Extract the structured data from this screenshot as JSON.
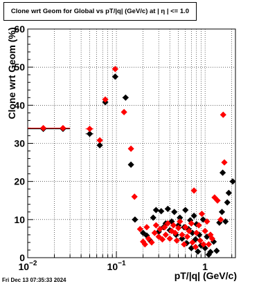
{
  "chart_data": {
    "type": "scatter",
    "title": "Clone wrt Geom for Global vs pT/|q| (GeV/c) at |  η  | <= 1.0",
    "xlabel": "pT/|q| (GeV/c)",
    "ylabel": "Clone wrt Geom (%)",
    "x_scale": "log",
    "xlim": [
      0.01,
      2.2
    ],
    "ylim": [
      0,
      60
    ],
    "grid": true,
    "y_ticks": [
      "0",
      "10",
      "20",
      "30",
      "40",
      "50",
      "60"
    ],
    "x_ticks": [
      {
        "value": 0.01,
        "base": "10",
        "exp": "−2"
      },
      {
        "value": 0.1,
        "base": "10",
        "exp": "−1"
      },
      {
        "value": 1,
        "base": "1",
        "exp": ""
      }
    ],
    "series": [
      {
        "color": "#000000",
        "marker": "diamond",
        "points": [
          {
            "x": 0.015,
            "y": 33.8,
            "x_lo": 0.01,
            "x_hi": 0.02
          },
          {
            "x": 0.025,
            "y": 33.8,
            "x_lo": 0.02,
            "x_hi": 0.03
          },
          {
            "x": 0.05,
            "y": 32.5,
            "x_lo": 0.045,
            "x_hi": 0.055
          },
          {
            "x": 0.065,
            "y": 29.5
          },
          {
            "x": 0.075,
            "y": 40.8
          },
          {
            "x": 0.097,
            "y": 47.5,
            "x_lo": 0.09,
            "x_hi": 0.105
          },
          {
            "x": 0.127,
            "y": 42.0,
            "x_lo": 0.117,
            "x_hi": 0.137
          },
          {
            "x": 0.146,
            "y": 24.4
          },
          {
            "x": 0.162,
            "y": 10.0
          },
          {
            "x": 0.2,
            "y": 6.5
          },
          {
            "x": 0.22,
            "y": 5.8
          },
          {
            "x": 0.24,
            "y": 4.5
          },
          {
            "x": 0.26,
            "y": 10.5
          },
          {
            "x": 0.28,
            "y": 12.5
          },
          {
            "x": 0.3,
            "y": 6.8
          },
          {
            "x": 0.32,
            "y": 12.2
          },
          {
            "x": 0.34,
            "y": 8.0
          },
          {
            "x": 0.36,
            "y": 9.0
          },
          {
            "x": 0.38,
            "y": 12.8
          },
          {
            "x": 0.4,
            "y": 7.2
          },
          {
            "x": 0.42,
            "y": 9.5
          },
          {
            "x": 0.45,
            "y": 12.0
          },
          {
            "x": 0.47,
            "y": 6.0
          },
          {
            "x": 0.5,
            "y": 8.5
          },
          {
            "x": 0.52,
            "y": 10.5
          },
          {
            "x": 0.55,
            "y": 5.0
          },
          {
            "x": 0.58,
            "y": 8.0
          },
          {
            "x": 0.6,
            "y": 12.5
          },
          {
            "x": 0.62,
            "y": 3.8
          },
          {
            "x": 0.65,
            "y": 7.5
          },
          {
            "x": 0.68,
            "y": 9.8
          },
          {
            "x": 0.7,
            "y": 2.5
          },
          {
            "x": 0.72,
            "y": 6.5
          },
          {
            "x": 0.75,
            "y": 11.0
          },
          {
            "x": 0.78,
            "y": 4.8
          },
          {
            "x": 0.8,
            "y": 8.8
          },
          {
            "x": 0.83,
            "y": 1.6
          },
          {
            "x": 0.86,
            "y": 6.0
          },
          {
            "x": 0.9,
            "y": 3.2
          },
          {
            "x": 0.95,
            "y": 10.0
          },
          {
            "x": 1.0,
            "y": 2.5
          },
          {
            "x": 1.05,
            "y": 5.5
          },
          {
            "x": 1.1,
            "y": 0.8
          },
          {
            "x": 1.15,
            "y": 1.5
          },
          {
            "x": 1.25,
            "y": 4.2
          },
          {
            "x": 1.35,
            "y": 1.8
          },
          {
            "x": 1.45,
            "y": 9.2
          },
          {
            "x": 1.55,
            "y": 12.0
          },
          {
            "x": 1.58,
            "y": 22.3
          },
          {
            "x": 1.7,
            "y": 9.5
          },
          {
            "x": 1.78,
            "y": 14.5
          },
          {
            "x": 1.85,
            "y": 17.0
          },
          {
            "x": 2.05,
            "y": 20.0
          }
        ]
      },
      {
        "color": "#ff0000",
        "marker": "diamond",
        "points": [
          {
            "x": 0.015,
            "y": 34.0,
            "x_lo": 0.01,
            "x_hi": 0.02
          },
          {
            "x": 0.025,
            "y": 34.0,
            "x_lo": 0.02,
            "x_hi": 0.03
          },
          {
            "x": 0.05,
            "y": 33.8,
            "x_lo": 0.045,
            "x_hi": 0.055
          },
          {
            "x": 0.065,
            "y": 30.8
          },
          {
            "x": 0.075,
            "y": 41.5
          },
          {
            "x": 0.097,
            "y": 49.5
          },
          {
            "x": 0.122,
            "y": 38.2
          },
          {
            "x": 0.146,
            "y": 28.6
          },
          {
            "x": 0.16,
            "y": 16.0
          },
          {
            "x": 0.185,
            "y": 7.5
          },
          {
            "x": 0.2,
            "y": 4.2
          },
          {
            "x": 0.21,
            "y": 3.5
          },
          {
            "x": 0.22,
            "y": 8.0
          },
          {
            "x": 0.23,
            "y": 5.0
          },
          {
            "x": 0.25,
            "y": 4.0
          },
          {
            "x": 0.27,
            "y": 6.5
          },
          {
            "x": 0.28,
            "y": 8.5
          },
          {
            "x": 0.3,
            "y": 5.5
          },
          {
            "x": 0.31,
            "y": 7.5
          },
          {
            "x": 0.33,
            "y": 4.8
          },
          {
            "x": 0.35,
            "y": 8.0
          },
          {
            "x": 0.36,
            "y": 6.0
          },
          {
            "x": 0.38,
            "y": 9.0
          },
          {
            "x": 0.4,
            "y": 5.0
          },
          {
            "x": 0.42,
            "y": 7.0
          },
          {
            "x": 0.44,
            "y": 8.5
          },
          {
            "x": 0.46,
            "y": 6.5
          },
          {
            "x": 0.48,
            "y": 4.5
          },
          {
            "x": 0.5,
            "y": 7.8
          },
          {
            "x": 0.52,
            "y": 9.5
          },
          {
            "x": 0.55,
            "y": 6.0
          },
          {
            "x": 0.58,
            "y": 3.5
          },
          {
            "x": 0.6,
            "y": 8.0
          },
          {
            "x": 0.63,
            "y": 5.5
          },
          {
            "x": 0.66,
            "y": 7.0
          },
          {
            "x": 0.7,
            "y": 9.0
          },
          {
            "x": 0.72,
            "y": 4.0
          },
          {
            "x": 0.75,
            "y": 17.6
          },
          {
            "x": 0.78,
            "y": 2.8
          },
          {
            "x": 0.8,
            "y": 6.5
          },
          {
            "x": 0.85,
            "y": 8.5
          },
          {
            "x": 0.88,
            "y": 4.5
          },
          {
            "x": 0.92,
            "y": 11.5
          },
          {
            "x": 0.96,
            "y": 3.5
          },
          {
            "x": 1.0,
            "y": 7.0
          },
          {
            "x": 1.05,
            "y": 9.5
          },
          {
            "x": 1.1,
            "y": 3.5
          },
          {
            "x": 1.15,
            "y": 6.0
          },
          {
            "x": 1.2,
            "y": 5.0
          },
          {
            "x": 1.28,
            "y": 15.8
          },
          {
            "x": 1.38,
            "y": 15.0
          },
          {
            "x": 1.5,
            "y": 10.0
          },
          {
            "x": 1.6,
            "y": 37.5
          },
          {
            "x": 1.65,
            "y": 25.0
          }
        ]
      }
    ]
  },
  "footer_timestamp": "Fri Dec 13 07:35:33 2024"
}
